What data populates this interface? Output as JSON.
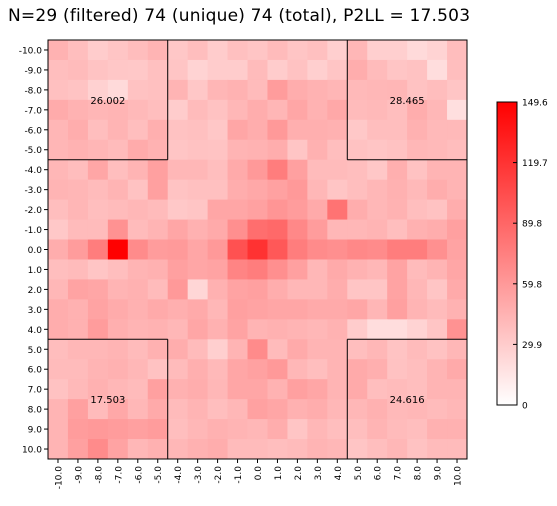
{
  "chart_data": {
    "type": "heatmap",
    "title": "N=29 (filtered) 74 (unique) 74 (total), P2LL = 17.503",
    "x_ticks": [
      "-10.0",
      "-9.0",
      "-8.0",
      "-7.0",
      "-6.0",
      "-5.0",
      "-4.0",
      "-3.0",
      "-2.0",
      "-1.0",
      "0.0",
      "1.0",
      "2.0",
      "3.0",
      "4.0",
      "5.0",
      "6.0",
      "7.0",
      "8.0",
      "9.0",
      "10.0"
    ],
    "y_ticks": [
      "-10.0",
      "-9.0",
      "-8.0",
      "-7.0",
      "-6.0",
      "-5.0",
      "-4.0",
      "-3.0",
      "-2.0",
      "-1.0",
      "0.0",
      "1.0",
      "2.0",
      "3.0",
      "4.0",
      "5.0",
      "6.0",
      "7.0",
      "8.0",
      "9.0",
      "10.0"
    ],
    "z_range": [
      0,
      149.6
    ],
    "colorbar_ticks": [
      "149.6",
      "119.7",
      "89.8",
      "59.8",
      "29.9",
      "0"
    ],
    "colormap": {
      "low": "#ffffff",
      "high": "#ff0000"
    },
    "quadrant_labels": [
      {
        "text": "26.002",
        "quadrant": "top-left"
      },
      {
        "text": "28.465",
        "quadrant": "top-right"
      },
      {
        "text": "17.503",
        "quadrant": "bottom-left"
      },
      {
        "text": "24.616",
        "quadrant": "bottom-right"
      }
    ],
    "values": [
      [
        45,
        38,
        30,
        34,
        39,
        44,
        33,
        38,
        30,
        37,
        34,
        40,
        34,
        37,
        28,
        42,
        28,
        28,
        22,
        26,
        39
      ],
      [
        38,
        40,
        35,
        33,
        32,
        37,
        34,
        26,
        30,
        30,
        40,
        30,
        36,
        28,
        34,
        48,
        40,
        34,
        36,
        20,
        38
      ],
      [
        37,
        35,
        27,
        22,
        36,
        37,
        44,
        33,
        43,
        45,
        40,
        58,
        48,
        45,
        43,
        41,
        42,
        43,
        36,
        39,
        34
      ],
      [
        49,
        45,
        43,
        44,
        41,
        38,
        30,
        40,
        36,
        42,
        48,
        43,
        52,
        45,
        51,
        40,
        41,
        38,
        48,
        42,
        19
      ],
      [
        43,
        48,
        38,
        44,
        38,
        47,
        36,
        37,
        33,
        52,
        48,
        60,
        47,
        47,
        46,
        32,
        38,
        38,
        46,
        41,
        41
      ],
      [
        43,
        45,
        43,
        40,
        49,
        45,
        34,
        36,
        35,
        44,
        45,
        48,
        34,
        46,
        38,
        36,
        34,
        36,
        42,
        41,
        39
      ],
      [
        42,
        39,
        52,
        38,
        44,
        56,
        42,
        42,
        38,
        50,
        60,
        76,
        56,
        40,
        40,
        38,
        33,
        47,
        36,
        44,
        44
      ],
      [
        44,
        43,
        40,
        44,
        36,
        56,
        35,
        37,
        37,
        48,
        51,
        55,
        60,
        42,
        34,
        38,
        42,
        46,
        41,
        48,
        44
      ],
      [
        38,
        43,
        38,
        40,
        42,
        40,
        32,
        34,
        52,
        52,
        55,
        62,
        58,
        50,
        82,
        48,
        42,
        45,
        38,
        36,
        48
      ],
      [
        32,
        40,
        40,
        64,
        40,
        44,
        52,
        46,
        50,
        66,
        85,
        88,
        70,
        58,
        42,
        42,
        44,
        38,
        46,
        48,
        56
      ],
      [
        48,
        58,
        76,
        149,
        68,
        58,
        59,
        52,
        60,
        102,
        120,
        98,
        76,
        68,
        66,
        70,
        68,
        76,
        76,
        65,
        54
      ],
      [
        38,
        40,
        34,
        38,
        44,
        46,
        56,
        52,
        54,
        72,
        76,
        66,
        56,
        42,
        50,
        45,
        42,
        54,
        40,
        44,
        52
      ],
      [
        42,
        54,
        52,
        44,
        46,
        40,
        60,
        24,
        46,
        54,
        56,
        48,
        42,
        42,
        48,
        34,
        34,
        54,
        42,
        34,
        50
      ],
      [
        48,
        46,
        54,
        49,
        46,
        50,
        47,
        50,
        42,
        56,
        54,
        52,
        52,
        50,
        50,
        52,
        43,
        56,
        44,
        40,
        45
      ],
      [
        48,
        46,
        58,
        47,
        44,
        45,
        42,
        52,
        46,
        54,
        44,
        46,
        44,
        42,
        45,
        30,
        20,
        20,
        26,
        34,
        64
      ],
      [
        39,
        42,
        42,
        44,
        40,
        46,
        48,
        40,
        28,
        44,
        68,
        40,
        50,
        44,
        44,
        38,
        42,
        35,
        40,
        36,
        42
      ],
      [
        40,
        40,
        44,
        46,
        42,
        36,
        40,
        47,
        41,
        52,
        55,
        60,
        42,
        38,
        44,
        50,
        47,
        36,
        38,
        44,
        50
      ],
      [
        36,
        41,
        46,
        42,
        40,
        56,
        46,
        48,
        42,
        52,
        52,
        45,
        56,
        52,
        44,
        50,
        38,
        40,
        38,
        44,
        44
      ],
      [
        44,
        56,
        40,
        51,
        42,
        50,
        40,
        44,
        38,
        42,
        55,
        52,
        46,
        48,
        42,
        42,
        46,
        41,
        42,
        40,
        42
      ],
      [
        44,
        58,
        60,
        58,
        56,
        58,
        38,
        42,
        46,
        44,
        42,
        48,
        34,
        42,
        38,
        38,
        44,
        40,
        38,
        46,
        46
      ],
      [
        44,
        56,
        68,
        54,
        42,
        46,
        42,
        46,
        48,
        40,
        40,
        38,
        40,
        44,
        42,
        34,
        38,
        42,
        36,
        40,
        40
      ]
    ]
  }
}
